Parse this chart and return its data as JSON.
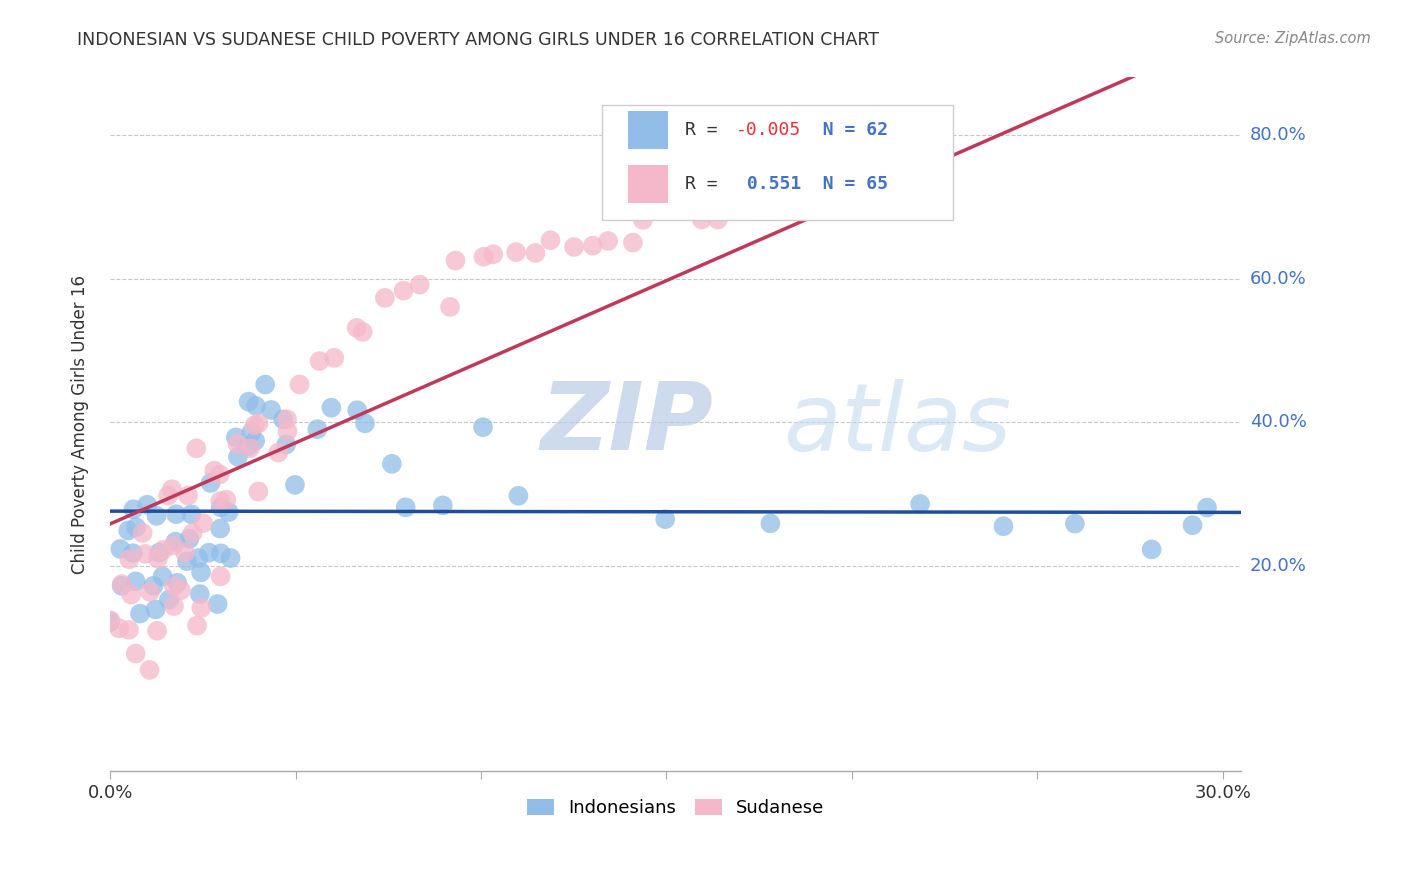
{
  "title": "INDONESIAN VS SUDANESE CHILD POVERTY AMONG GIRLS UNDER 16 CORRELATION CHART",
  "source": "Source: ZipAtlas.com",
  "ylabel": "Child Poverty Among Girls Under 16",
  "ytick_labels": [
    "20.0%",
    "40.0%",
    "60.0%",
    "80.0%"
  ],
  "ytick_values": [
    0.2,
    0.4,
    0.6,
    0.8
  ],
  "xlim": [
    0.0,
    0.305
  ],
  "ylim": [
    -0.085,
    0.88
  ],
  "legend_indonesians": "Indonesians",
  "legend_sudanese": "Sudanese",
  "R_indonesian": -0.005,
  "N_indonesian": 62,
  "R_sudanese": 0.551,
  "N_sudanese": 65,
  "color_blue": "#92BDE8",
  "color_pink": "#F5B8CA",
  "color_trend_blue": "#1F4E9C",
  "color_trend_pink": "#C0395A",
  "watermark_zip": "ZIP",
  "watermark_atlas": "atlas",
  "ind_x": [
    0.001,
    0.002,
    0.003,
    0.004,
    0.005,
    0.006,
    0.007,
    0.008,
    0.009,
    0.01,
    0.011,
    0.012,
    0.013,
    0.014,
    0.015,
    0.016,
    0.017,
    0.018,
    0.019,
    0.02,
    0.021,
    0.022,
    0.023,
    0.024,
    0.025,
    0.026,
    0.027,
    0.028,
    0.029,
    0.03,
    0.031,
    0.032,
    0.033,
    0.034,
    0.035,
    0.036,
    0.037,
    0.038,
    0.039,
    0.04,
    0.042,
    0.044,
    0.046,
    0.048,
    0.05,
    0.055,
    0.06,
    0.065,
    0.07,
    0.075,
    0.08,
    0.09,
    0.1,
    0.11,
    0.15,
    0.18,
    0.22,
    0.24,
    0.26,
    0.28,
    0.29,
    0.295
  ],
  "ind_y": [
    0.14,
    0.18,
    0.22,
    0.26,
    0.16,
    0.2,
    0.24,
    0.28,
    0.12,
    0.3,
    0.18,
    0.22,
    0.26,
    0.14,
    0.2,
    0.24,
    0.16,
    0.28,
    0.22,
    0.18,
    0.24,
    0.2,
    0.26,
    0.16,
    0.22,
    0.18,
    0.3,
    0.14,
    0.24,
    0.2,
    0.3,
    0.26,
    0.22,
    0.38,
    0.34,
    0.42,
    0.4,
    0.36,
    0.44,
    0.38,
    0.44,
    0.42,
    0.4,
    0.36,
    0.3,
    0.38,
    0.44,
    0.42,
    0.4,
    0.36,
    0.28,
    0.28,
    0.38,
    0.28,
    0.28,
    0.27,
    0.28,
    0.27,
    0.27,
    0.22,
    0.27,
    0.27
  ],
  "sud_x": [
    0.001,
    0.002,
    0.003,
    0.004,
    0.005,
    0.006,
    0.007,
    0.008,
    0.009,
    0.01,
    0.011,
    0.012,
    0.013,
    0.014,
    0.015,
    0.016,
    0.017,
    0.018,
    0.019,
    0.02,
    0.021,
    0.022,
    0.023,
    0.024,
    0.025,
    0.026,
    0.027,
    0.028,
    0.029,
    0.03,
    0.031,
    0.032,
    0.034,
    0.036,
    0.038,
    0.04,
    0.042,
    0.044,
    0.046,
    0.048,
    0.05,
    0.055,
    0.06,
    0.065,
    0.07,
    0.075,
    0.08,
    0.085,
    0.09,
    0.095,
    0.1,
    0.105,
    0.11,
    0.115,
    0.12,
    0.125,
    0.13,
    0.135,
    0.14,
    0.145,
    0.15,
    0.155,
    0.16,
    0.165,
    0.17
  ],
  "sud_y": [
    0.1,
    0.14,
    0.18,
    0.22,
    0.08,
    0.12,
    0.16,
    0.2,
    0.06,
    0.24,
    0.16,
    0.2,
    0.24,
    0.1,
    0.28,
    0.14,
    0.18,
    0.3,
    0.22,
    0.16,
    0.26,
    0.2,
    0.28,
    0.12,
    0.36,
    0.16,
    0.24,
    0.32,
    0.18,
    0.28,
    0.34,
    0.3,
    0.38,
    0.36,
    0.32,
    0.38,
    0.4,
    0.36,
    0.42,
    0.38,
    0.44,
    0.48,
    0.5,
    0.52,
    0.54,
    0.56,
    0.58,
    0.6,
    0.56,
    0.62,
    0.64,
    0.62,
    0.64,
    0.62,
    0.64,
    0.66,
    0.64,
    0.66,
    0.64,
    0.68,
    0.7,
    0.68,
    0.7,
    0.68,
    0.72
  ]
}
